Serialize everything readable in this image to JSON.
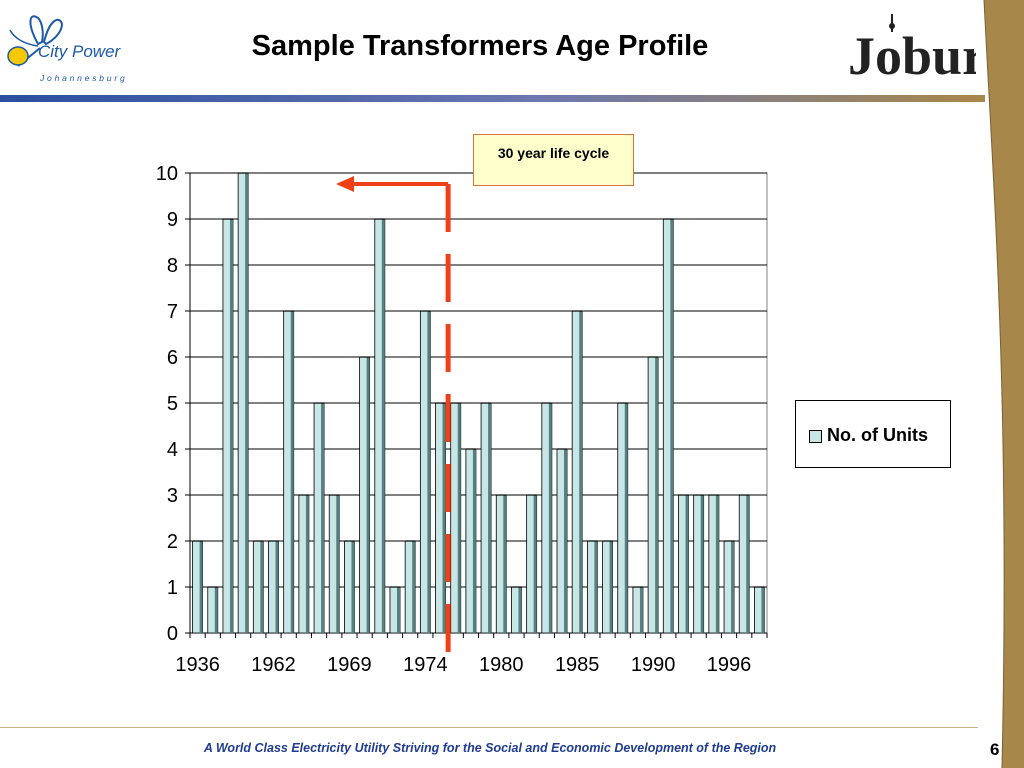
{
  "header": {
    "title": "Sample Transformers Age Profile",
    "logo_left_name": "City Power",
    "logo_left_sub": "Johannesburg",
    "logo_right": "Joburg"
  },
  "callout": {
    "text": "30 year life cycle"
  },
  "legend": {
    "label": "No. of Units"
  },
  "footer": {
    "text": "A World Class Electricity Utility Striving for the Social and Economic Development of the Region",
    "page": "6"
  },
  "colors": {
    "bar_fill": "#c8e6e6",
    "bar_shadow": "#558080",
    "marker": "#f0401a",
    "footer_text": "#1f3c91",
    "band": "#a8874a"
  },
  "chart_data": {
    "type": "bar",
    "series": [
      {
        "name": "No. of Units",
        "values": [
          2,
          1,
          9,
          10,
          2,
          2,
          7,
          3,
          5,
          3,
          2,
          6,
          9,
          1,
          2,
          7,
          5,
          5,
          4,
          5,
          3,
          1,
          3,
          5,
          4,
          7,
          2,
          2,
          5,
          1,
          6,
          9,
          3,
          3,
          3,
          2,
          3,
          1
        ]
      }
    ],
    "tick_labels": [
      "1936",
      "1962",
      "1969",
      "1974",
      "1980",
      "1985",
      "1990",
      "1996"
    ],
    "tick_label_every": 5,
    "ylim": [
      0,
      10
    ],
    "yticks": [
      0,
      1,
      2,
      3,
      4,
      5,
      6,
      7,
      8,
      9,
      10
    ],
    "grid": true,
    "legend_position": "right",
    "annotation": {
      "text": "30 year life cycle",
      "marker_after_bar_index": 16,
      "arrow": "left"
    }
  }
}
